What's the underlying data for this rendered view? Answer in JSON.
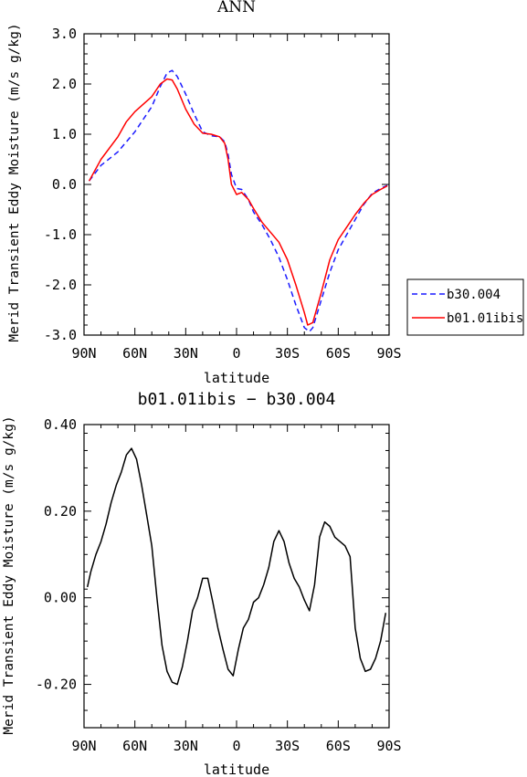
{
  "chart_data": [
    {
      "type": "line",
      "title": "ANN",
      "xlabel": "latitude",
      "ylabel": "Merid Transient Eddy Moisture (m/s g/kg)",
      "xlim": [
        90,
        -90
      ],
      "ylim": [
        -3.0,
        3.0
      ],
      "x_ticks": [
        "90N",
        "60N",
        "30N",
        "0",
        "30S",
        "60S",
        "90S"
      ],
      "y_ticks": [
        "3.0",
        "2.0",
        "1.0",
        "0.0",
        "-1.0",
        "-2.0",
        "-3.0"
      ],
      "grid": false,
      "legend": "right",
      "series": [
        {
          "name": "b30.004",
          "color": "#1a1aff",
          "dash": "dashed",
          "x": [
            87,
            80,
            70,
            60,
            50,
            45,
            41,
            38,
            35,
            30,
            25,
            20,
            15,
            10,
            7,
            5,
            3,
            0,
            -3,
            -7,
            -10,
            -15,
            -20,
            -25,
            -30,
            -35,
            -40,
            -43,
            -45,
            -50,
            -55,
            -60,
            -65,
            -70,
            -75,
            -80,
            -85,
            -89
          ],
          "y": [
            0.07,
            0.38,
            0.65,
            1.05,
            1.55,
            1.95,
            2.22,
            2.27,
            2.15,
            1.8,
            1.4,
            1.05,
            0.97,
            0.95,
            0.85,
            0.6,
            0.2,
            -0.08,
            -0.1,
            -0.3,
            -0.55,
            -0.8,
            -1.1,
            -1.45,
            -1.9,
            -2.4,
            -2.85,
            -2.93,
            -2.85,
            -2.3,
            -1.75,
            -1.3,
            -1.0,
            -0.7,
            -0.4,
            -0.18,
            -0.08,
            -0.02
          ]
        },
        {
          "name": "b01.01ibis",
          "color": "#ff0000",
          "dash": "solid",
          "x": [
            87,
            80,
            70,
            65,
            60,
            50,
            45,
            41,
            38,
            35,
            30,
            25,
            20,
            15,
            10,
            7,
            5,
            3,
            0,
            -3,
            -7,
            -10,
            -15,
            -20,
            -25,
            -30,
            -35,
            -40,
            -42,
            -45,
            -50,
            -55,
            -60,
            -65,
            -70,
            -75,
            -80,
            -85,
            -89
          ],
          "y": [
            0.07,
            0.5,
            0.95,
            1.25,
            1.45,
            1.75,
            2.0,
            2.1,
            2.08,
            1.9,
            1.5,
            1.2,
            1.02,
            1.0,
            0.95,
            0.82,
            0.5,
            0.0,
            -0.2,
            -0.16,
            -0.3,
            -0.48,
            -0.75,
            -0.95,
            -1.15,
            -1.5,
            -2.0,
            -2.55,
            -2.8,
            -2.75,
            -2.15,
            -1.5,
            -1.1,
            -0.85,
            -0.6,
            -0.38,
            -0.2,
            -0.1,
            -0.03
          ]
        }
      ]
    },
    {
      "type": "line",
      "title": "b01.01ibis − b30.004",
      "xlabel": "latitude",
      "ylabel": "Merid Transient Eddy Moisture (m/s g/kg)",
      "xlim": [
        90,
        -90
      ],
      "ylim": [
        -0.3,
        0.4
      ],
      "x_ticks": [
        "90N",
        "60N",
        "30N",
        "0",
        "30S",
        "60S",
        "90S"
      ],
      "y_ticks": [
        "0.40",
        "0.20",
        "0.00",
        "-0.20"
      ],
      "grid": false,
      "series": [
        {
          "name": "",
          "color": "#000000",
          "dash": "solid",
          "x": [
            88,
            86,
            83,
            80,
            77,
            74,
            71,
            68,
            65,
            62,
            59,
            56,
            53,
            50,
            47,
            44,
            41,
            38,
            35,
            32,
            29,
            26,
            23,
            20,
            17,
            14,
            11,
            8,
            5,
            2,
            -1,
            -4,
            -7,
            -10,
            -13,
            -16,
            -19,
            -22,
            -25,
            -28,
            -31,
            -34,
            -37,
            -40,
            -43,
            -46,
            -49,
            -52,
            -55,
            -58,
            -61,
            -64,
            -67,
            -70,
            -73,
            -76,
            -79,
            -82,
            -85,
            -88
          ],
          "y": [
            0.025,
            0.06,
            0.1,
            0.13,
            0.17,
            0.22,
            0.26,
            0.29,
            0.33,
            0.345,
            0.32,
            0.26,
            0.19,
            0.12,
            0.0,
            -0.11,
            -0.17,
            -0.195,
            -0.2,
            -0.16,
            -0.1,
            -0.03,
            0.0,
            0.045,
            0.045,
            -0.01,
            -0.07,
            -0.12,
            -0.165,
            -0.18,
            -0.12,
            -0.07,
            -0.05,
            -0.01,
            0.0,
            0.03,
            0.07,
            0.13,
            0.155,
            0.13,
            0.08,
            0.045,
            0.025,
            -0.005,
            -0.03,
            0.03,
            0.14,
            0.175,
            0.165,
            0.14,
            0.13,
            0.12,
            0.095,
            -0.07,
            -0.14,
            -0.17,
            -0.165,
            -0.14,
            -0.1,
            -0.035
          ]
        }
      ]
    }
  ]
}
